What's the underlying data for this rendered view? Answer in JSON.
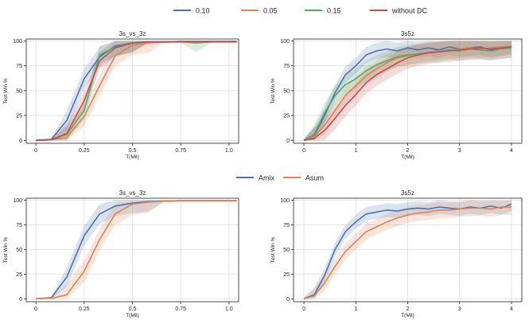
{
  "legends": {
    "top": [
      {
        "label": "0.10",
        "color": "#4c72b0"
      },
      {
        "label": "0.05",
        "color": "#dd8452"
      },
      {
        "label": "0.15",
        "color": "#55a868"
      },
      {
        "label": "without DC",
        "color": "#c44e52"
      }
    ],
    "middle": [
      {
        "label": "Amix",
        "color": "#4c72b0"
      },
      {
        "label": "Asum",
        "color": "#dd8452"
      }
    ]
  },
  "chart_data": [
    {
      "type": "line",
      "title": "3s_vs_3z",
      "xlabel": "T(Mil)",
      "ylabel": "Test Win %",
      "xlim": [
        -0.05,
        1.05
      ],
      "ylim": [
        -3,
        102
      ],
      "xticks": [
        0,
        0.25,
        0.5,
        0.75,
        1.0
      ],
      "xtick_labels": [
        "0",
        "0.25",
        "0.5",
        "0.75",
        "1.0"
      ],
      "yticks": [
        0,
        25,
        50,
        75,
        100
      ],
      "ytick_labels": [
        "0",
        "25",
        "50",
        "75",
        "100"
      ],
      "grid": true,
      "x": [
        0,
        0.08,
        0.16,
        0.25,
        0.33,
        0.41,
        0.5,
        0.58,
        0.66,
        0.75,
        0.83,
        0.91,
        1.0,
        1.04
      ],
      "series": [
        {
          "name": "0.10",
          "color": "#4c72b0",
          "values": [
            0,
            1,
            20,
            62,
            84,
            95,
            98,
            99,
            99,
            99.5,
            99.5,
            99.5,
            99.5,
            99.5
          ],
          "band": 10
        },
        {
          "name": "0.05",
          "color": "#dd8452",
          "values": [
            0,
            0.5,
            3,
            24,
            55,
            85,
            96,
            98,
            99,
            99.5,
            99.5,
            99.5,
            99.5,
            99.5
          ],
          "band": 10
        },
        {
          "name": "0.15",
          "color": "#55a868",
          "values": [
            0,
            0.5,
            6,
            30,
            86,
            94,
            98,
            99,
            99,
            99,
            98,
            99,
            99,
            99
          ],
          "band": 9
        },
        {
          "name": "without DC",
          "color": "#c44e52",
          "values": [
            0,
            0.5,
            7,
            40,
            80,
            93,
            98,
            99,
            99,
            99.5,
            99.5,
            99.5,
            99.5,
            99.5
          ],
          "band": 9
        }
      ]
    },
    {
      "type": "line",
      "title": "3s5z",
      "xlabel": "T(Mil)",
      "ylabel": "Test Win %",
      "xlim": [
        -0.2,
        4.2
      ],
      "ylim": [
        -3,
        102
      ],
      "xticks": [
        0,
        1,
        2,
        3,
        4
      ],
      "xtick_labels": [
        "0",
        "1",
        "2",
        "3",
        "4"
      ],
      "yticks": [
        0,
        25,
        50,
        75,
        100
      ],
      "ytick_labels": [
        "0",
        "25",
        "50",
        "75",
        "100"
      ],
      "grid": true,
      "x": [
        0,
        0.2,
        0.4,
        0.6,
        0.8,
        1.0,
        1.2,
        1.4,
        1.6,
        1.8,
        2.0,
        2.2,
        2.4,
        2.6,
        2.8,
        3.0,
        3.2,
        3.4,
        3.6,
        3.8,
        4.0
      ],
      "series": [
        {
          "name": "0.10",
          "color": "#4c72b0",
          "values": [
            0,
            5,
            25,
            48,
            66,
            75,
            86,
            90,
            92,
            90,
            93,
            91,
            93,
            91,
            94,
            92,
            93,
            94,
            91,
            93,
            95
          ],
          "band": 8
        },
        {
          "name": "0.05",
          "color": "#dd8452",
          "values": [
            0,
            4,
            15,
            30,
            45,
            55,
            65,
            72,
            78,
            83,
            85,
            87,
            89,
            90,
            91,
            92,
            93,
            92,
            93,
            94,
            95
          ],
          "band": 9
        },
        {
          "name": "0.15",
          "color": "#55a868",
          "values": [
            0,
            6,
            28,
            45,
            56,
            62,
            70,
            76,
            80,
            84,
            86,
            87,
            88,
            89,
            91,
            90,
            92,
            91,
            90,
            92,
            93
          ],
          "band": 10
        },
        {
          "name": "without DC",
          "color": "#c44e52",
          "values": [
            0,
            2,
            10,
            22,
            35,
            46,
            58,
            66,
            72,
            78,
            83,
            86,
            88,
            89,
            90,
            91,
            92,
            93,
            92,
            93,
            94
          ],
          "band": 11
        }
      ]
    },
    {
      "type": "line",
      "title": "3s_vs_3z",
      "xlabel": "T(Mil)",
      "ylabel": "Test Win %",
      "xlim": [
        -0.05,
        1.05
      ],
      "ylim": [
        -3,
        102
      ],
      "xticks": [
        0,
        0.25,
        0.5,
        0.75,
        1.0
      ],
      "xtick_labels": [
        "0",
        "0.25",
        "0.5",
        "0.75",
        "1.0"
      ],
      "yticks": [
        0,
        25,
        50,
        75,
        100
      ],
      "ytick_labels": [
        "0",
        "25",
        "50",
        "75",
        "100"
      ],
      "grid": true,
      "x": [
        0,
        0.08,
        0.16,
        0.25,
        0.33,
        0.41,
        0.5,
        0.58,
        0.66,
        0.75,
        0.83,
        0.91,
        1.0,
        1.04
      ],
      "series": [
        {
          "name": "Amix",
          "color": "#4c72b0",
          "values": [
            0,
            1,
            22,
            64,
            86,
            94,
            97,
            98.5,
            99,
            99.5,
            99.5,
            99.5,
            99.5,
            99.5
          ],
          "band": 10
        },
        {
          "name": "Asum",
          "color": "#dd8452",
          "values": [
            0,
            0.5,
            4,
            28,
            60,
            86,
            96,
            98,
            99,
            99.5,
            99.5,
            99.5,
            99.5,
            99.5
          ],
          "band": 11
        }
      ]
    },
    {
      "type": "line",
      "title": "3s5z",
      "xlabel": "T(Mil)",
      "ylabel": "Test Win %",
      "xlim": [
        -0.2,
        4.2
      ],
      "ylim": [
        -3,
        102
      ],
      "xticks": [
        0,
        1,
        2,
        3,
        4
      ],
      "xtick_labels": [
        "0",
        "1",
        "2",
        "3",
        "4"
      ],
      "yticks": [
        0,
        25,
        50,
        75,
        100
      ],
      "ytick_labels": [
        "0",
        "25",
        "50",
        "75",
        "100"
      ],
      "grid": true,
      "x": [
        0,
        0.2,
        0.4,
        0.6,
        0.8,
        1.0,
        1.2,
        1.4,
        1.6,
        1.8,
        2.0,
        2.2,
        2.4,
        2.6,
        2.8,
        3.0,
        3.2,
        3.4,
        3.6,
        3.8,
        4.0
      ],
      "series": [
        {
          "name": "Amix",
          "color": "#4c72b0",
          "values": [
            0,
            4,
            24,
            50,
            68,
            78,
            86,
            88,
            90,
            89,
            91,
            92,
            91,
            93,
            92,
            91,
            93,
            92,
            94,
            92,
            96
          ],
          "band": 7
        },
        {
          "name": "Asum",
          "color": "#dd8452",
          "values": [
            0,
            3,
            16,
            33,
            48,
            58,
            68,
            73,
            78,
            82,
            85,
            87,
            88,
            90,
            90,
            91,
            92,
            92,
            91,
            93,
            93
          ],
          "band": 8
        }
      ]
    }
  ]
}
